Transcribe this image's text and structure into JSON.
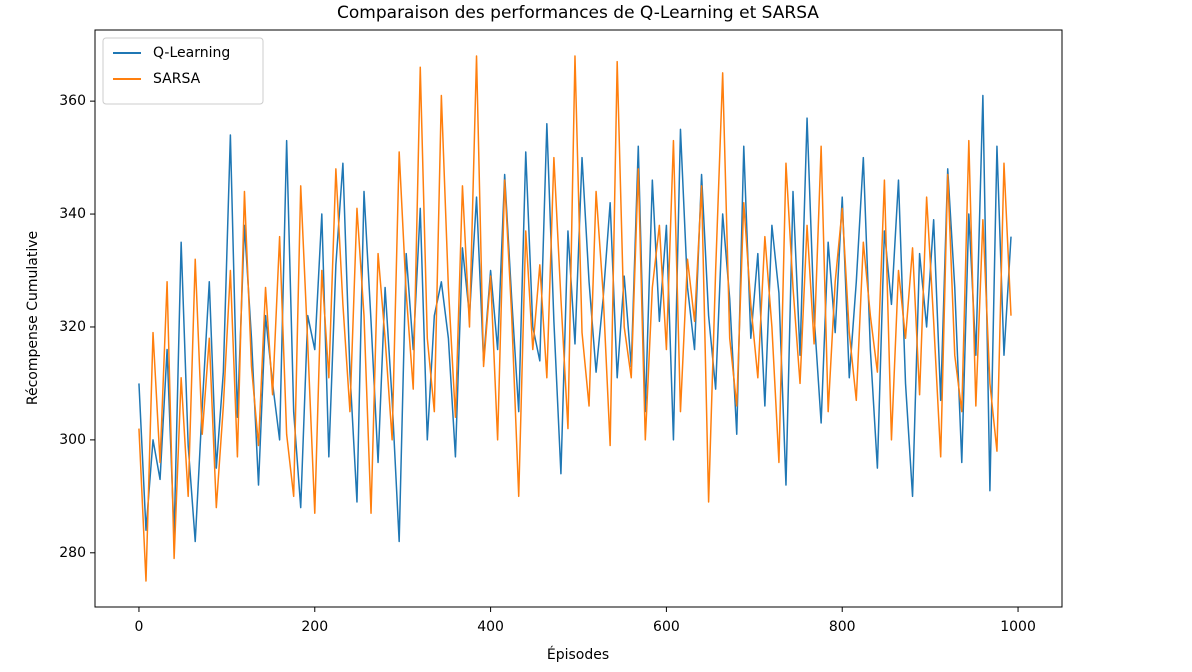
{
  "chart_data": {
    "type": "line",
    "title": "Comparaison des performances de Q-Learning et SARSA",
    "xlabel": "Épisodes",
    "ylabel": "Récompense Cumulative",
    "x": [
      0,
      8,
      16,
      24,
      32,
      40,
      48,
      56,
      64,
      72,
      80,
      88,
      96,
      104,
      112,
      120,
      128,
      136,
      144,
      152,
      160,
      168,
      176,
      184,
      192,
      200,
      208,
      216,
      224,
      232,
      240,
      248,
      256,
      264,
      272,
      280,
      288,
      296,
      304,
      312,
      320,
      328,
      336,
      344,
      352,
      360,
      368,
      376,
      384,
      392,
      400,
      408,
      416,
      424,
      432,
      440,
      448,
      456,
      464,
      472,
      480,
      488,
      496,
      504,
      512,
      520,
      528,
      536,
      544,
      552,
      560,
      568,
      576,
      584,
      592,
      600,
      608,
      616,
      624,
      632,
      640,
      648,
      656,
      664,
      672,
      680,
      688,
      696,
      704,
      712,
      720,
      728,
      736,
      744,
      752,
      760,
      768,
      776,
      784,
      792,
      800,
      808,
      816,
      824,
      832,
      840,
      848,
      856,
      864,
      872,
      880,
      888,
      896,
      904,
      912,
      920,
      928,
      936,
      944,
      952,
      960,
      968,
      976,
      984,
      992
    ],
    "series": [
      {
        "name": "Q-Learning",
        "color": "#1f77b4",
        "values": [
          310,
          284,
          300,
          293,
          316,
          283,
          335,
          299,
          282,
          306,
          328,
          295,
          312,
          354,
          304,
          338,
          318,
          292,
          322,
          310,
          300,
          353,
          305,
          288,
          322,
          316,
          340,
          297,
          331,
          349,
          312,
          289,
          344,
          321,
          296,
          327,
          307,
          282,
          333,
          316,
          341,
          300,
          322,
          328,
          318,
          297,
          334,
          322,
          343,
          314,
          330,
          316,
          347,
          325,
          305,
          351,
          320,
          314,
          356,
          321,
          294,
          337,
          317,
          350,
          328,
          312,
          325,
          342,
          311,
          329,
          313,
          352,
          305,
          346,
          321,
          338,
          300,
          355,
          327,
          316,
          347,
          322,
          309,
          340,
          325,
          301,
          352,
          318,
          333,
          306,
          338,
          326,
          292,
          344,
          315,
          357,
          322,
          303,
          335,
          319,
          343,
          311,
          328,
          350,
          316,
          295,
          337,
          324,
          346,
          310,
          290,
          333,
          320,
          339,
          307,
          348,
          327,
          296,
          340,
          315,
          361,
          291,
          352,
          315,
          336
        ]
      },
      {
        "name": "SARSA",
        "color": "#ff7f0e",
        "values": [
          302,
          275,
          319,
          296,
          328,
          279,
          311,
          290,
          332,
          301,
          318,
          288,
          306,
          330,
          297,
          344,
          313,
          299,
          327,
          308,
          336,
          301,
          290,
          345,
          317,
          287,
          330,
          311,
          348,
          324,
          305,
          341,
          322,
          287,
          333,
          318,
          300,
          351,
          326,
          309,
          366,
          318,
          305,
          361,
          327,
          304,
          345,
          320,
          368,
          313,
          329,
          300,
          346,
          322,
          290,
          337,
          316,
          331,
          311,
          350,
          325,
          302,
          368,
          319,
          306,
          344,
          326,
          299,
          367,
          320,
          311,
          348,
          300,
          327,
          338,
          316,
          353,
          305,
          332,
          321,
          345,
          289,
          330,
          365,
          318,
          306,
          342,
          324,
          311,
          336,
          320,
          296,
          349,
          327,
          310,
          338,
          317,
          352,
          305,
          328,
          341,
          319,
          307,
          335,
          322,
          312,
          346,
          300,
          330,
          318,
          334,
          308,
          343,
          321,
          297,
          347,
          315,
          305,
          353,
          306,
          339,
          310,
          298,
          349,
          322
        ]
      }
    ],
    "xlim": [
      -50,
      1050
    ],
    "ylim": [
      270.4,
      372.6
    ],
    "xticks": [
      0,
      200,
      400,
      600,
      800,
      1000
    ],
    "yticks": [
      280,
      300,
      320,
      340,
      360
    ],
    "legend": "upper left",
    "grid": false
  }
}
